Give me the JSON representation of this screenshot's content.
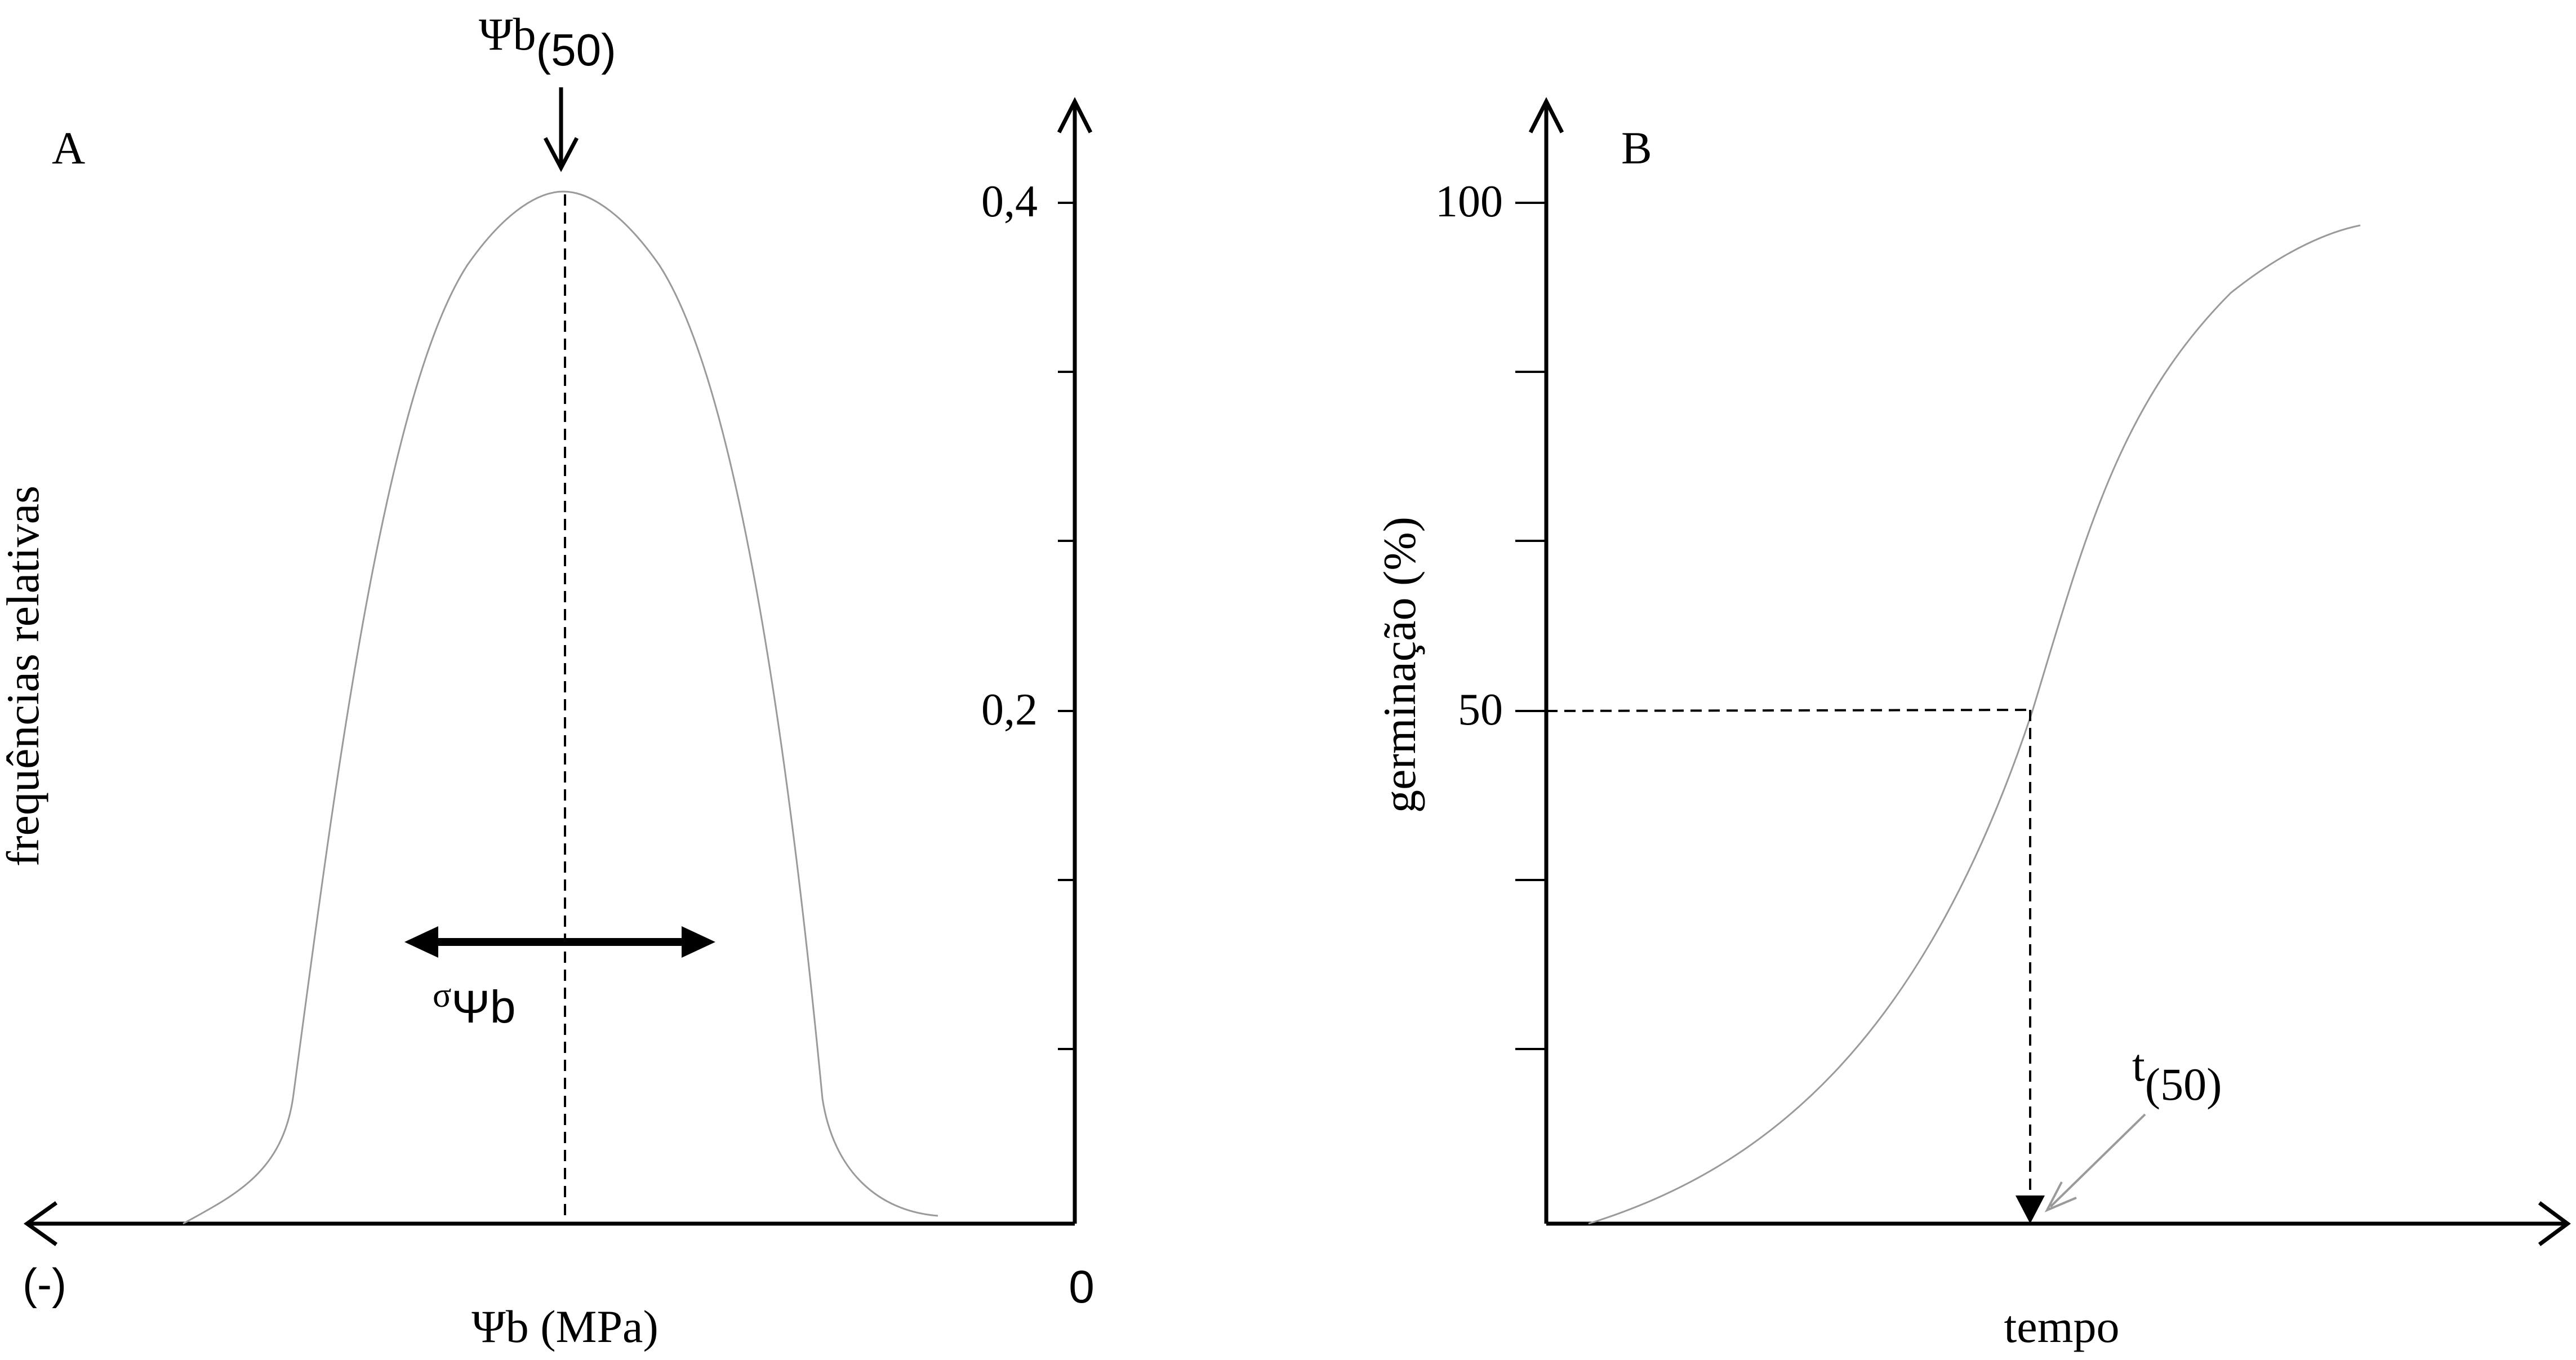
{
  "panel_a": {
    "label": "A",
    "y_title": "frequências relativas",
    "y_ticks": [
      "0,4",
      "0,2"
    ],
    "x_title": "Ψb (MPa)",
    "x_left_label": "(-)",
    "x_origin_label": "0",
    "peak_symbol": "Ψb",
    "peak_subscript": "(50)",
    "sigma_symbol": "σ",
    "sigma_sub": "Ψb"
  },
  "panel_b": {
    "label": "B",
    "y_title": "germinação (%)",
    "y_ticks": [
      "100",
      "50"
    ],
    "x_title": "tempo",
    "t_symbol": "t",
    "t_subscript": "(50)"
  },
  "colors": {
    "axis": "#000000",
    "curve": "#9a9a9a"
  }
}
